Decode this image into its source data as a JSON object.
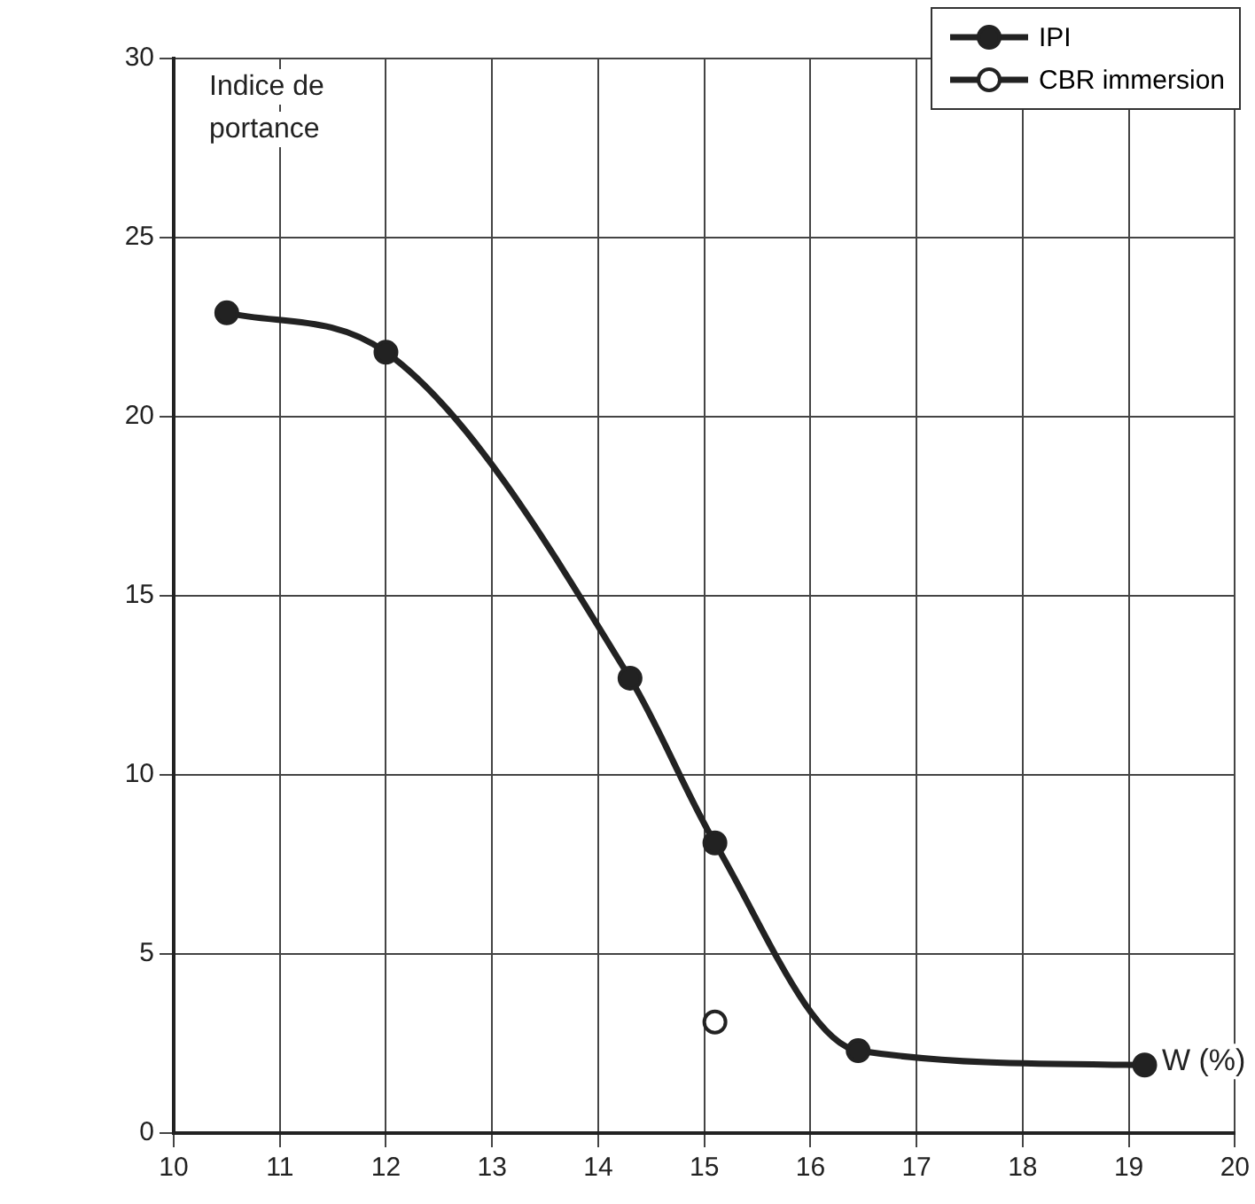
{
  "chart_data": {
    "type": "line",
    "xlabel": "W (%)",
    "ylabel": "Indice de portance",
    "xlim": [
      10,
      20
    ],
    "xticks": [
      10,
      11,
      12,
      13,
      14,
      15,
      16,
      17,
      18,
      19,
      20
    ],
    "ylim": [
      0,
      30
    ],
    "yticks": [
      0,
      5,
      10,
      15,
      20,
      25,
      30
    ],
    "grid": true,
    "legend": "top right",
    "series": [
      {
        "name": "IPI",
        "type": "line",
        "color": "#222222",
        "marker": "circle",
        "x": [
          10.5,
          12.0,
          14.3,
          15.1,
          16.45,
          19.15
        ],
        "values": [
          22.9,
          21.8,
          12.7,
          8.1,
          2.3,
          1.9
        ]
      },
      {
        "name": "CBR immersion",
        "type": "scatter",
        "color": "#222222",
        "marker": "circle",
        "x": [
          15.1
        ],
        "values": [
          3.1
        ]
      }
    ]
  }
}
